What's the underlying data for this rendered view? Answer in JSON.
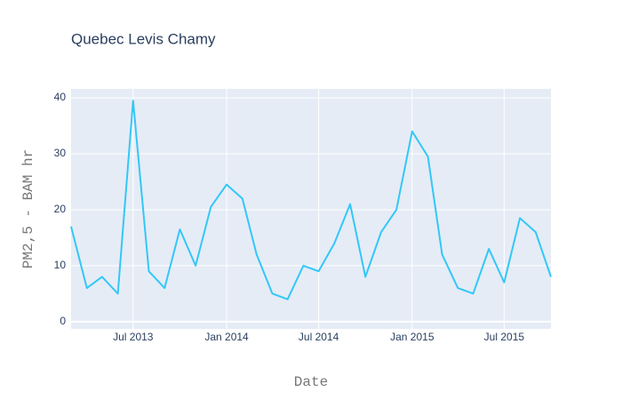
{
  "chart_data": {
    "type": "line",
    "title": "Quebec Levis Chamy",
    "x_label": "Date",
    "y_label": "PM2,5 - BAM hr",
    "x": [
      "2013-03",
      "2013-04",
      "2013-05",
      "2013-06",
      "2013-07",
      "2013-08",
      "2013-09",
      "2013-10",
      "2013-11",
      "2013-12",
      "2014-01",
      "2014-02",
      "2014-03",
      "2014-04",
      "2014-05",
      "2014-06",
      "2014-07",
      "2014-08",
      "2014-09",
      "2014-10",
      "2014-11",
      "2014-12",
      "2015-01",
      "2015-02",
      "2015-03",
      "2015-04",
      "2015-05",
      "2015-06",
      "2015-07",
      "2015-08",
      "2015-09",
      "2015-10"
    ],
    "series": [
      {
        "name": "PM2,5 - BAM hr",
        "color": "#33c7f7",
        "values": [
          17,
          6,
          8,
          5,
          39.5,
          9,
          6,
          16.5,
          10,
          20.5,
          24.5,
          22,
          12,
          5,
          4,
          10,
          9,
          14,
          21,
          8,
          16,
          20,
          34,
          29.5,
          12,
          6,
          5,
          13,
          7,
          18.5,
          16,
          8
        ]
      }
    ],
    "xlim": [
      "2013-03",
      "2015-10"
    ],
    "xticks": [
      {
        "value": "2013-07",
        "label": "Jul 2013"
      },
      {
        "value": "2014-01",
        "label": "Jan 2014"
      },
      {
        "value": "2014-07",
        "label": "Jul 2014"
      },
      {
        "value": "2015-01",
        "label": "Jan 2015"
      },
      {
        "value": "2015-07",
        "label": "Jul 2015"
      }
    ],
    "ylim": [
      -1.3,
      41.6
    ],
    "yticks": [
      0,
      10,
      20,
      30,
      40
    ],
    "grid": true
  }
}
